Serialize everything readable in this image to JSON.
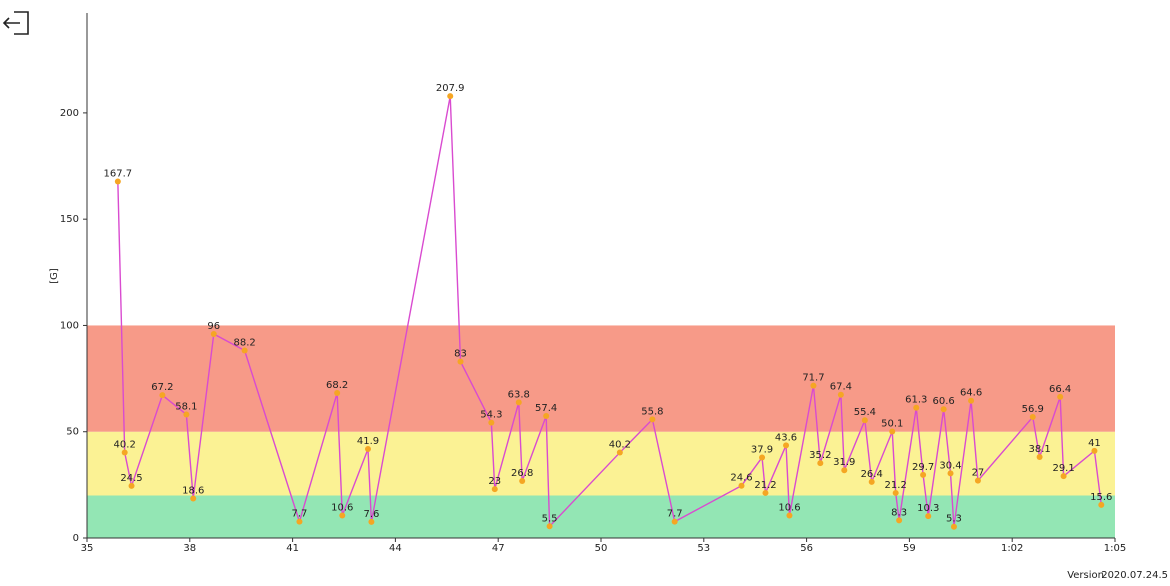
{
  "chart_data": {
    "type": "line",
    "y_label": "[G]",
    "xlim": [
      35,
      65
    ],
    "ylim": [
      0,
      247
    ],
    "xticks": [
      35,
      38,
      41,
      44,
      47,
      50,
      53,
      56,
      59,
      {
        "value": 62,
        "label": "1:02"
      },
      {
        "value": 65,
        "label": "1:05"
      }
    ],
    "yticks": [
      0,
      50,
      100,
      150,
      200
    ],
    "bands": [
      {
        "from": 0,
        "to": 20,
        "color": "#93e6b4"
      },
      {
        "from": 20,
        "to": 50,
        "color": "#fbf294"
      },
      {
        "from": 50,
        "to": 100,
        "color": "#f79a88"
      }
    ],
    "series": [
      {
        "color": "#d94bd0",
        "marker_color": "#f5a623",
        "x": [
          35.9,
          36.1,
          36.3,
          37.2,
          37.9,
          38.1,
          38.7,
          39.6,
          41.2,
          42.3,
          42.45,
          43.2,
          43.3,
          45.6,
          45.9,
          46.8,
          46.9,
          47.6,
          47.7,
          48.4,
          48.5,
          50.55,
          51.5,
          52.15,
          54.1,
          54.7,
          54.8,
          55.4,
          55.5,
          56.2,
          56.4,
          57.0,
          57.1,
          57.7,
          57.9,
          58.5,
          58.6,
          58.7,
          59.2,
          59.4,
          59.55,
          60.0,
          60.2,
          60.3,
          60.8,
          61.0,
          62.6,
          62.8,
          63.4,
          63.5,
          64.4,
          64.6
        ],
        "values": [
          167.7,
          40.2,
          24.5,
          67.2,
          58.1,
          18.6,
          96,
          88.2,
          7.7,
          68.2,
          10.6,
          41.9,
          7.6,
          207.9,
          83,
          54.3,
          23,
          63.8,
          26.8,
          57.4,
          5.5,
          40.2,
          55.8,
          7.7,
          24.6,
          37.9,
          21.2,
          43.6,
          10.6,
          71.7,
          35.2,
          67.4,
          31.9,
          55.4,
          26.4,
          50.1,
          21.2,
          8.3,
          61.3,
          29.7,
          10.3,
          60.6,
          30.4,
          5.3,
          64.6,
          27,
          56.9,
          38.1,
          66.4,
          29.1,
          41,
          15.6
        ]
      }
    ]
  },
  "version_label": "Version",
  "version": "2020.07.24.5"
}
